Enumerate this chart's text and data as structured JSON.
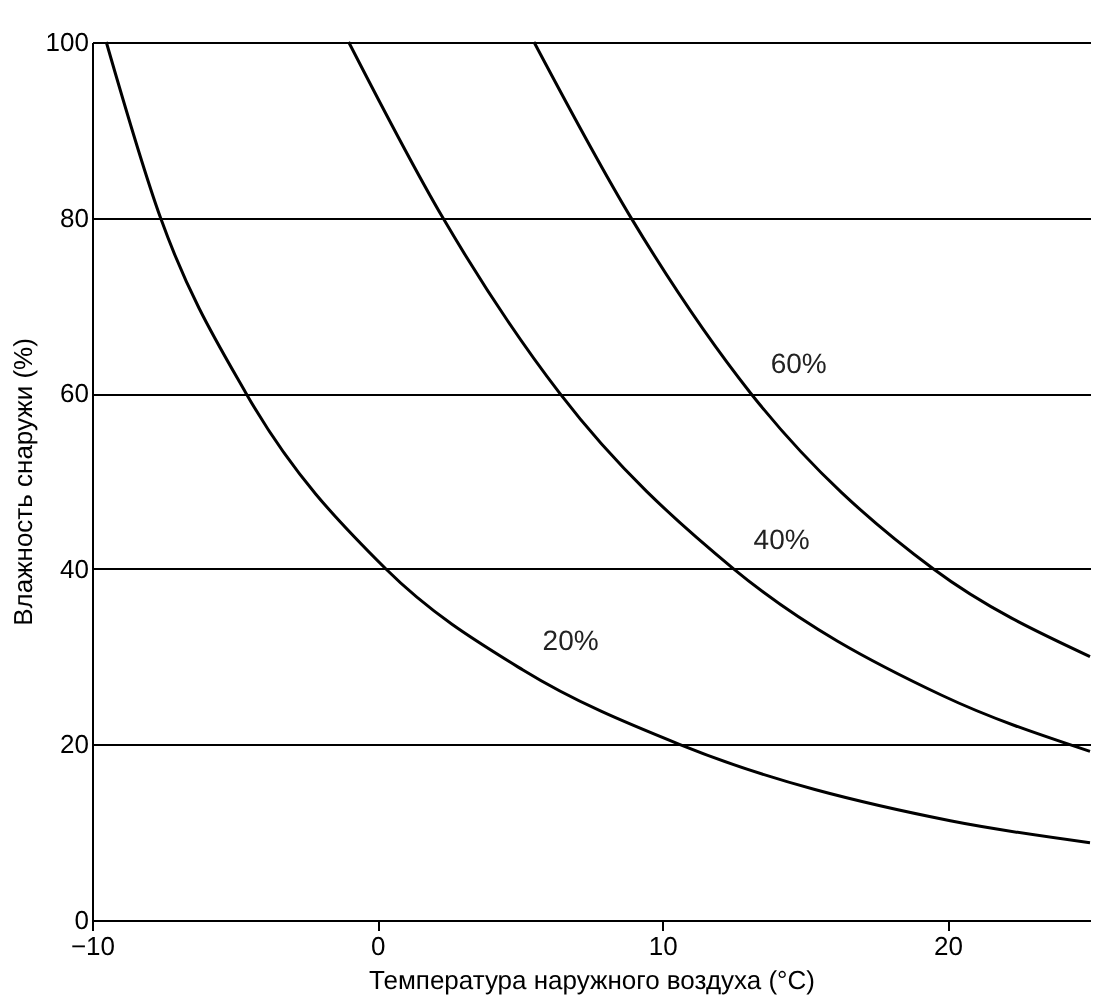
{
  "chart_data": {
    "type": "line",
    "xlabel": "Температура наружного воздуха (°C)",
    "ylabel": "Влажность снаружи (%)",
    "xlim": [
      -10,
      25
    ],
    "xticks": [
      -10,
      0,
      10,
      20
    ],
    "ylim": [
      0,
      100
    ],
    "yticks": [
      0,
      20,
      40,
      60,
      80,
      100
    ],
    "grid": "y",
    "marker": "none",
    "line_style": "solid",
    "series": [
      {
        "name": "20%",
        "color": "#000000",
        "x": [
          -9.5,
          -7.6,
          -4.6,
          0.3,
          5.1,
          10.6,
          20.1,
          25
        ],
        "values": [
          100,
          80,
          60,
          40,
          28.5,
          20,
          11.3,
          8.8
        ]
      },
      {
        "name": "40%",
        "color": "#000000",
        "x": [
          -1.0,
          2.3,
          6.4,
          12.5,
          19.8,
          25
        ],
        "values": [
          100,
          80,
          60,
          40,
          25.6,
          19.2
        ]
      },
      {
        "name": "60%",
        "color": "#000000",
        "x": [
          5.5,
          8.9,
          13.1,
          19.5,
          25
        ],
        "values": [
          100,
          80,
          60,
          40,
          30.0
        ]
      }
    ]
  }
}
